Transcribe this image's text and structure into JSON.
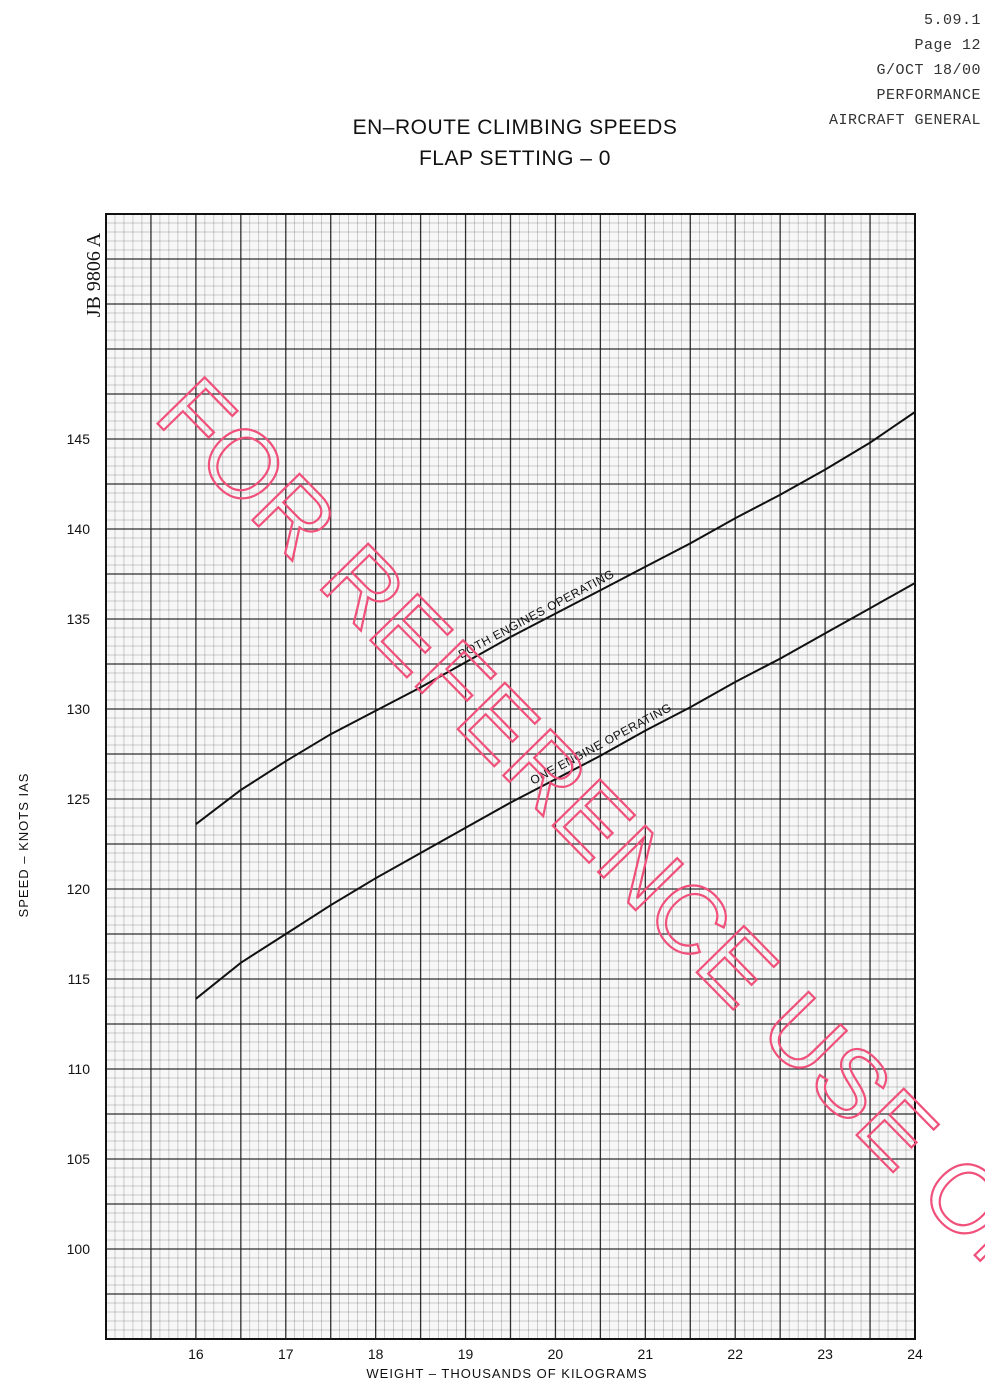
{
  "header": {
    "lines": [
      "5.09.1",
      "Page 12",
      "G/OCT 18/00",
      "PERFORMANCE",
      "AIRCRAFT GENERAL"
    ]
  },
  "reference_code": "JB 9806 A",
  "watermark": "FOR REFERENCE USE ONLY",
  "colors": {
    "grid": "#1a1a1a",
    "curves": "#111111",
    "watermark": "#f0507a"
  },
  "chart_data": {
    "type": "line",
    "title": "EN–ROUTE CLIMBING SPEEDS",
    "subtitle": "FLAP SETTING – 0",
    "xlabel": "WEIGHT  –  THOUSANDS  OF  KILOGRAMS",
    "ylabel": "SPEED  –  KNOTS  IAS",
    "xlim": [
      15.0,
      24.0
    ],
    "ylim": [
      95.0,
      157.5
    ],
    "x_ticks": [
      16,
      17,
      18,
      19,
      20,
      21,
      22,
      23,
      24
    ],
    "y_ticks": [
      100,
      105,
      110,
      115,
      120,
      125,
      130,
      135,
      140,
      145
    ],
    "grid": true,
    "legend": "none",
    "series": [
      {
        "name": "BOTH ENGINES  OPERATING",
        "x": [
          16.0,
          16.5,
          17.0,
          17.5,
          18.0,
          18.5,
          19.0,
          19.5,
          20.0,
          20.5,
          21.0,
          21.5,
          22.0,
          22.5,
          23.0,
          23.5,
          24.0
        ],
        "y": [
          123.6,
          125.5,
          127.1,
          128.6,
          129.9,
          131.2,
          132.6,
          134.0,
          135.3,
          136.6,
          137.9,
          139.2,
          140.6,
          141.9,
          143.3,
          144.8,
          146.5
        ]
      },
      {
        "name": "ONE ENGINE  OPERATING",
        "x": [
          16.0,
          16.5,
          17.0,
          17.5,
          18.0,
          18.5,
          19.0,
          19.5,
          20.0,
          20.5,
          21.0,
          21.5,
          22.0,
          22.5,
          23.0,
          23.5,
          24.0
        ],
        "y": [
          113.9,
          115.9,
          117.5,
          119.1,
          120.6,
          122.0,
          123.4,
          124.8,
          126.1,
          127.4,
          128.8,
          130.1,
          131.5,
          132.8,
          134.2,
          135.6,
          137.0
        ]
      }
    ]
  }
}
